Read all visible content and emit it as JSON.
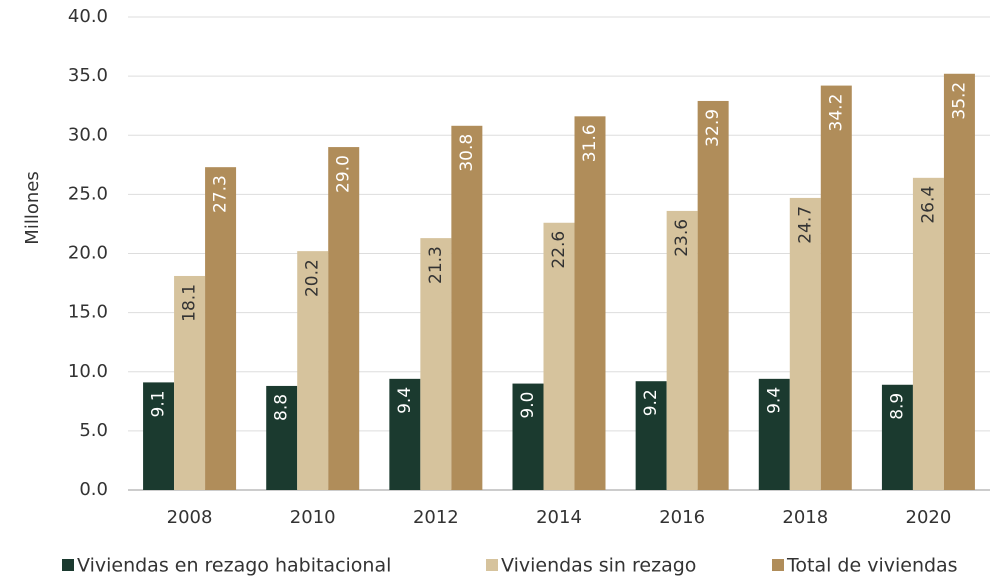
{
  "chart_data": {
    "type": "bar",
    "y_label": "Millones",
    "categories": [
      "2008",
      "2010",
      "2012",
      "2014",
      "2016",
      "2018",
      "2020"
    ],
    "series": [
      {
        "name": "Viviendas en rezago habitacional",
        "color": "#1b3a2f",
        "label_color": "#ffffff",
        "values": [
          9.1,
          8.8,
          9.4,
          9.0,
          9.2,
          9.4,
          8.9
        ],
        "value_labels": [
          "9.1",
          "8.8",
          "9.4",
          "9.0",
          "9.2",
          "9.4",
          "8.9"
        ]
      },
      {
        "name": "Viviendas sin rezago",
        "color": "#d6c39d",
        "label_color": "#333333",
        "values": [
          18.1,
          20.2,
          21.3,
          22.6,
          23.6,
          24.7,
          26.4
        ],
        "value_labels": [
          "18.1",
          "20.2",
          "21.3",
          "22.6",
          "23.6",
          "24.7",
          "26.4"
        ]
      },
      {
        "name": "Total de viviendas",
        "color": "#b08d5a",
        "label_color": "#ffffff",
        "values": [
          27.3,
          29.0,
          30.8,
          31.6,
          32.9,
          34.2,
          35.2
        ],
        "value_labels": [
          "27.3",
          "29.0",
          "30.8",
          "31.6",
          "32.9",
          "34.2",
          "35.2"
        ]
      }
    ],
    "ylim": [
      0,
      40
    ],
    "yticks": [
      {
        "value": 0,
        "label": "0.0"
      },
      {
        "value": 5,
        "label": "5.0"
      },
      {
        "value": 10,
        "label": "10.0"
      },
      {
        "value": 15,
        "label": "15.0"
      },
      {
        "value": 20,
        "label": "20.0"
      },
      {
        "value": 25,
        "label": "25.0"
      },
      {
        "value": 30,
        "label": "30.0"
      },
      {
        "value": 35,
        "label": "35.0"
      },
      {
        "value": 40,
        "label": "40.0"
      }
    ],
    "grid": true,
    "legend": "bottom"
  }
}
